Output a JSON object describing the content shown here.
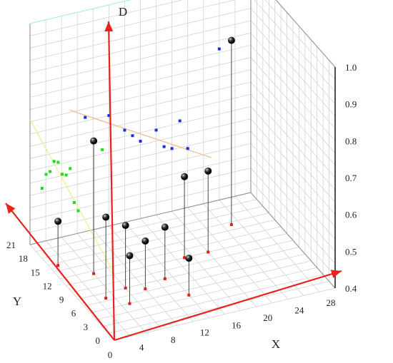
{
  "chart_data": {
    "type": "scatter",
    "subtype": "3d-scatter-with-projections",
    "axes": {
      "x": {
        "label": "X",
        "range": [
          0,
          28
        ],
        "ticks": [
          0,
          4,
          8,
          12,
          16,
          20,
          24,
          28
        ]
      },
      "y": {
        "label": "Y",
        "range": [
          0,
          21
        ],
        "ticks": [
          0,
          3,
          6,
          9,
          12,
          15,
          18,
          21
        ]
      },
      "z": {
        "label": "D",
        "range": [
          0.4,
          1.0
        ],
        "ticks": [
          0.4,
          0.5,
          0.6,
          0.7,
          0.8,
          0.9,
          1.0
        ]
      }
    },
    "grid": true,
    "points": [
      {
        "x": 1,
        "y": 16,
        "z": 0.52
      },
      {
        "x": 4,
        "y": 13,
        "z": 0.76
      },
      {
        "x": 3,
        "y": 8,
        "z": 0.62
      },
      {
        "x": 6,
        "y": 9,
        "z": 0.57
      },
      {
        "x": 5,
        "y": 6,
        "z": 0.53
      },
      {
        "x": 8,
        "y": 8,
        "z": 0.53
      },
      {
        "x": 11,
        "y": 9,
        "z": 0.54
      },
      {
        "x": 15,
        "y": 12,
        "z": 0.62
      },
      {
        "x": 12,
        "y": 5,
        "z": 0.5
      },
      {
        "x": 18,
        "y": 12,
        "z": 0.62
      },
      {
        "x": 23,
        "y": 16,
        "z": 0.9
      }
    ],
    "projection_yz": [
      {
        "y": 18,
        "z": 0.59
      },
      {
        "y": 17,
        "z": 0.64
      },
      {
        "y": 16,
        "z": 0.66
      },
      {
        "y": 15,
        "z": 0.7
      },
      {
        "y": 14,
        "z": 0.71
      },
      {
        "y": 13,
        "z": 0.69
      },
      {
        "y": 12,
        "z": 0.7
      },
      {
        "y": 11,
        "z": 0.73
      },
      {
        "y": 10,
        "z": 0.65
      },
      {
        "y": 9,
        "z": 0.64
      },
      {
        "y": 3,
        "z": 0.88
      }
    ],
    "fit_yz": {
      "y": [
        0,
        21
      ],
      "z": [
        0.58,
        0.74
      ]
    },
    "projection_xz": [
      {
        "x": 7,
        "z": 0.71
      },
      {
        "x": 10,
        "z": 0.7
      },
      {
        "x": 12,
        "z": 0.65
      },
      {
        "x": 13,
        "z": 0.63
      },
      {
        "x": 14,
        "z": 0.61
      },
      {
        "x": 16,
        "z": 0.63
      },
      {
        "x": 17,
        "z": 0.58
      },
      {
        "x": 18,
        "z": 0.57
      },
      {
        "x": 19,
        "z": 0.64
      },
      {
        "x": 20,
        "z": 0.56
      },
      {
        "x": 24,
        "z": 0.81
      }
    ],
    "fit_xz": {
      "x": [
        5,
        23
      ],
      "z": [
        0.74,
        0.52
      ]
    },
    "colors": {
      "axis": "#e8211a",
      "xy_projection": "#e0201b",
      "yz_projection": "#17e017",
      "xz_projection": "#1a2fe0",
      "yz_fit": "#f1ef9c",
      "xz_fit": "#f3c39a",
      "top_edge": "#a9efef",
      "grid": "#d3d3d3",
      "frame": "#9a9a9a",
      "ball": "#111111"
    }
  }
}
